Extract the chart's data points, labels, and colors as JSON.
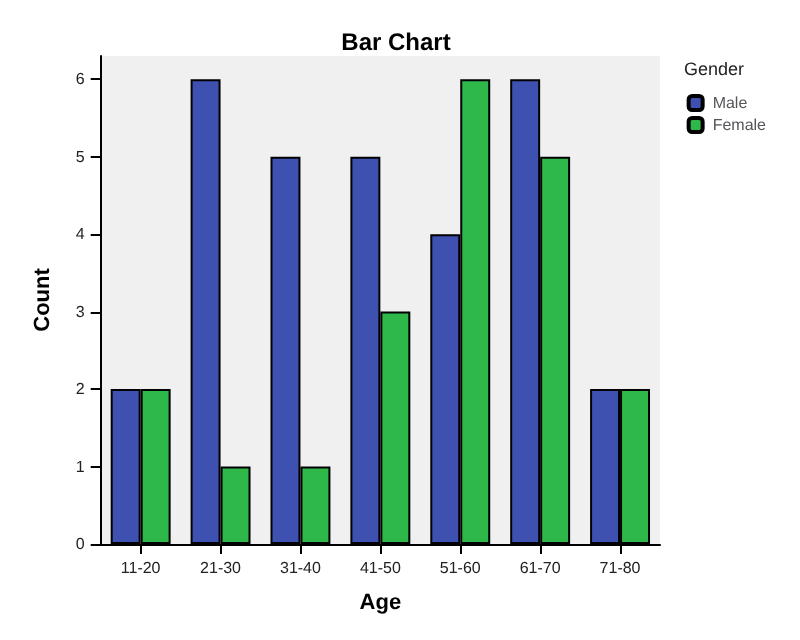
{
  "chart_data": {
    "type": "bar",
    "title": "Bar Chart",
    "xlabel": "Age",
    "ylabel": "Count",
    "legend_title": "Gender",
    "categories": [
      "11-20",
      "21-30",
      "31-40",
      "41-50",
      "51-60",
      "61-70",
      "71-80"
    ],
    "series": [
      {
        "name": "Male",
        "color": "#3f51b0",
        "values": [
          2,
          6,
          5,
          5,
          4,
          6,
          2
        ]
      },
      {
        "name": "Female",
        "color": "#2fb84a",
        "values": [
          2,
          1,
          1,
          3,
          6,
          5,
          2
        ]
      }
    ],
    "ylim": [
      0,
      6.3
    ],
    "yticks": [
      0,
      1,
      2,
      3,
      4,
      5,
      6
    ],
    "grid": false,
    "legend": "top right"
  }
}
